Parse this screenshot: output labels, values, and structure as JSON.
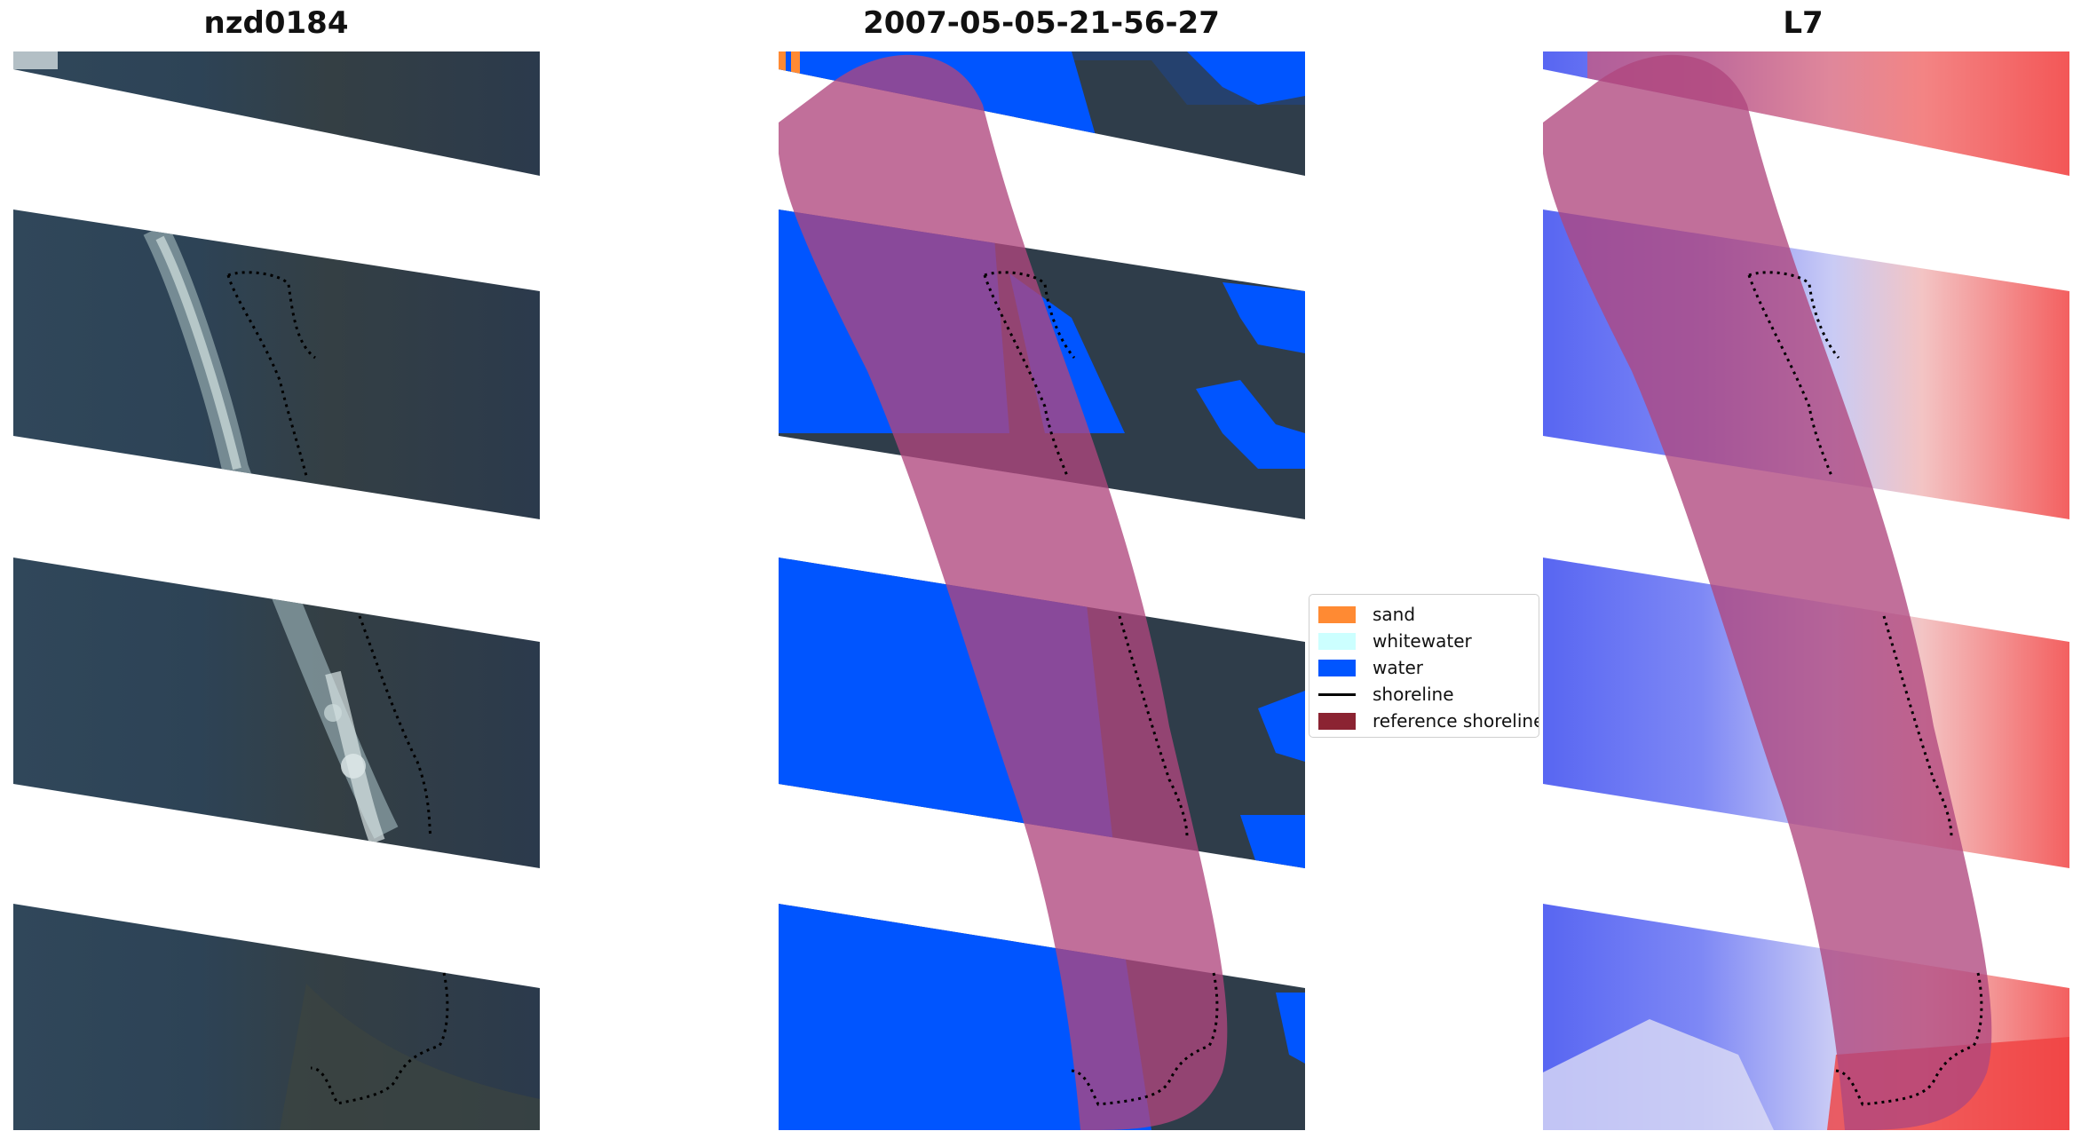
{
  "panels": {
    "left": {
      "title": "nzd0184"
    },
    "middle": {
      "title": "2007-05-05-21-56-27"
    },
    "right": {
      "title": "L7"
    }
  },
  "legend": {
    "items": [
      {
        "label": "sand",
        "color": "#ff8a33",
        "kind": "patch"
      },
      {
        "label": "whitewater",
        "color": "#ccffff",
        "kind": "patch"
      },
      {
        "label": "water",
        "color": "#0055ff",
        "kind": "patch"
      },
      {
        "label": "shoreline",
        "color": "#000000",
        "kind": "line"
      },
      {
        "label": "reference shoreline",
        "color": "#8b2332",
        "kind": "patch"
      }
    ]
  },
  "colors": {
    "imagery_dark": "#2b3c4e",
    "water_class": "#0055ff",
    "reference_buffer": "#b0477e",
    "index_water": "#4d5cf0",
    "index_land": "#f04040"
  }
}
